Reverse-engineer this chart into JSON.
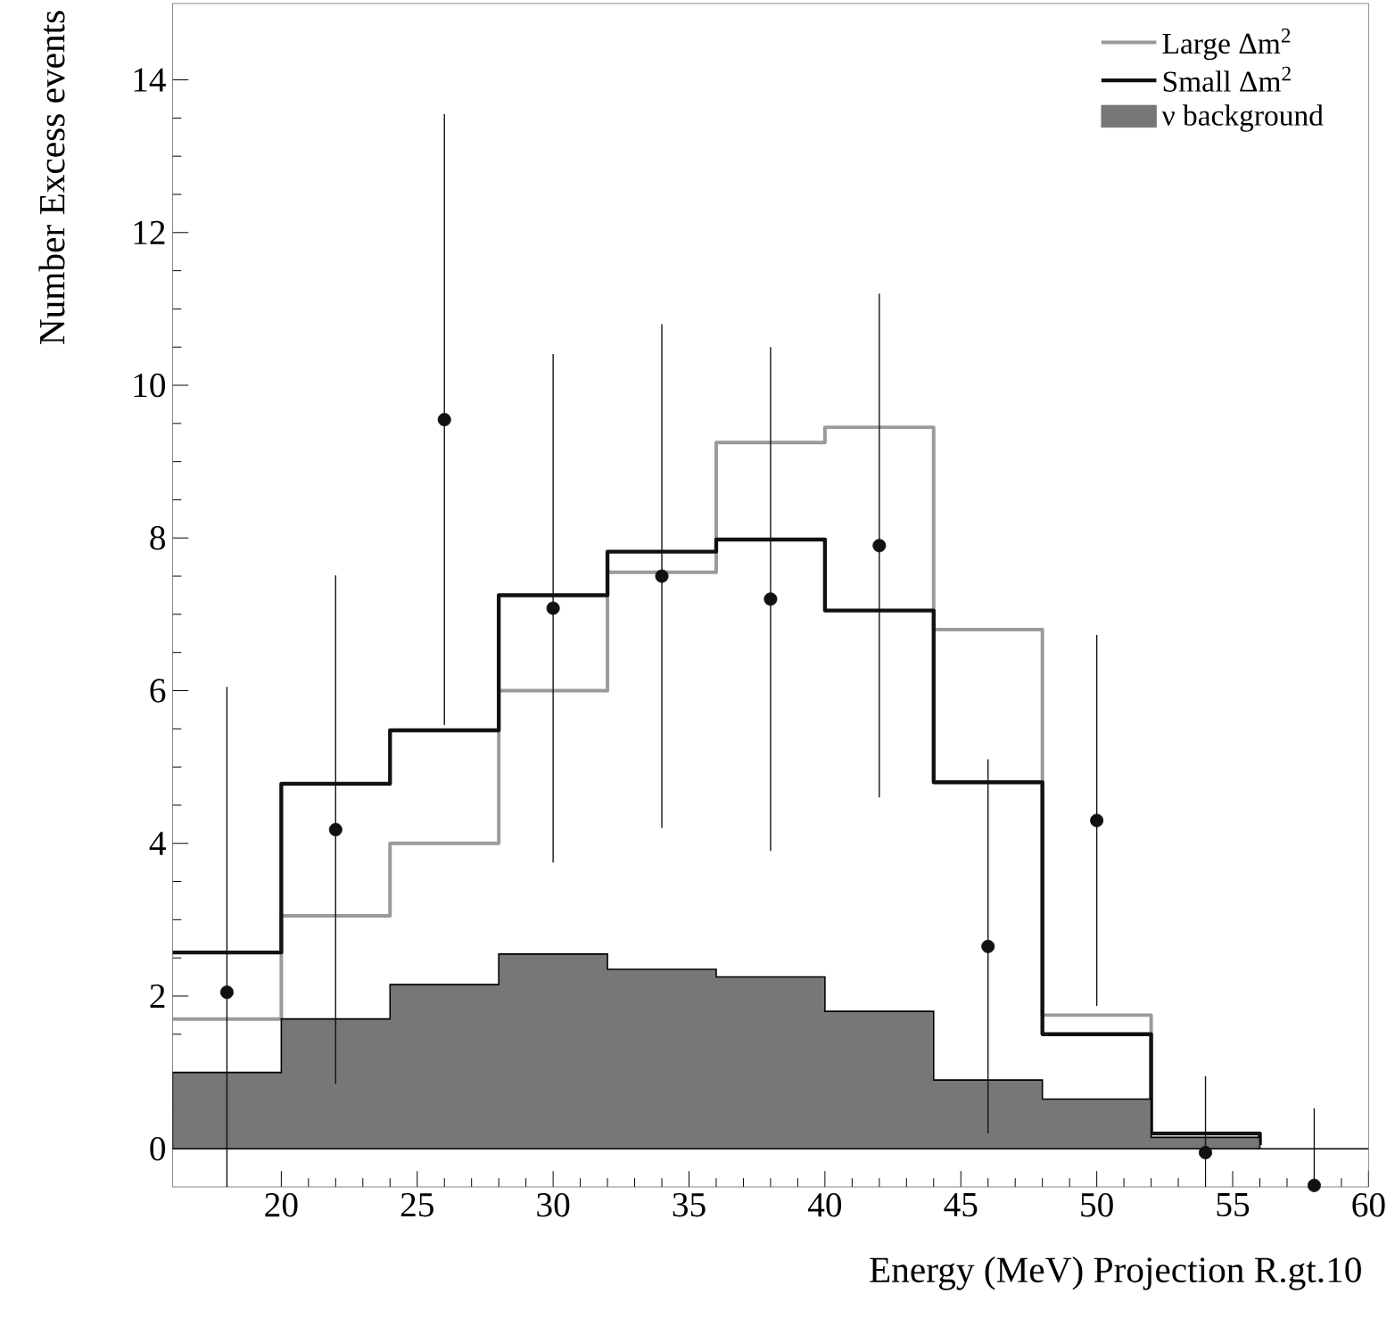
{
  "chart_data": {
    "type": "histogram",
    "xlabel": "Energy (MeV) Projection R.gt.10",
    "ylabel": "Number Excess events",
    "bins": [
      16,
      20,
      24,
      28,
      32,
      36,
      40,
      44,
      48,
      52,
      56,
      60
    ],
    "xlim": [
      16,
      60
    ],
    "ylim": [
      -0.5,
      15
    ],
    "xticks": [
      20,
      25,
      30,
      35,
      40,
      45,
      50,
      55,
      60
    ],
    "yticks": [
      0,
      2,
      4,
      6,
      8,
      10,
      12,
      14
    ],
    "legend": "top right",
    "series": [
      {
        "name": "Large Δm$^{2}$",
        "type": "step",
        "marker": "none",
        "x": [
          16,
          20,
          24,
          28,
          32,
          36,
          40,
          44,
          48,
          52,
          56
        ],
        "color": "#9a9a9a",
        "values": [
          1.7,
          3.05,
          4.0,
          6.0,
          7.55,
          9.25,
          9.45,
          6.8,
          1.75,
          0.2,
          0.05
        ]
      },
      {
        "name": "Small Δm$^{2}$",
        "type": "step",
        "marker": "none",
        "x": [
          16,
          20,
          24,
          28,
          32,
          36,
          40,
          44,
          48,
          52,
          56
        ],
        "color": "#111111",
        "values": [
          2.57,
          4.78,
          5.48,
          7.25,
          7.82,
          7.98,
          7.05,
          4.8,
          1.5,
          0.2,
          0.05
        ]
      },
      {
        "name": "ν background",
        "color": "#777777",
        "values": [
          1.0,
          1.7,
          2.15,
          2.55,
          2.35,
          2.25,
          1.8,
          0.9,
          0.65,
          0.15,
          0.0
        ]
      },
      {
        "type": "scatter",
        "marker": "circle",
        "color": "#111111",
        "x": [
          18,
          22,
          26,
          30,
          34,
          38,
          42,
          46,
          50,
          54,
          58
        ],
        "values": [
          2.05,
          4.18,
          9.55,
          7.08,
          7.5,
          7.2,
          7.9,
          2.65,
          4.3,
          -0.05,
          -0.48
        ],
        "errors": [
          [
            -0.5,
            6.05
          ],
          3.33,
          4.0,
          3.33,
          3.3,
          3.3,
          3.3,
          2.45,
          2.43,
          [
            -0.5,
            0.95
          ],
          [
            -0.5,
            0.53
          ]
        ]
      }
    ]
  }
}
